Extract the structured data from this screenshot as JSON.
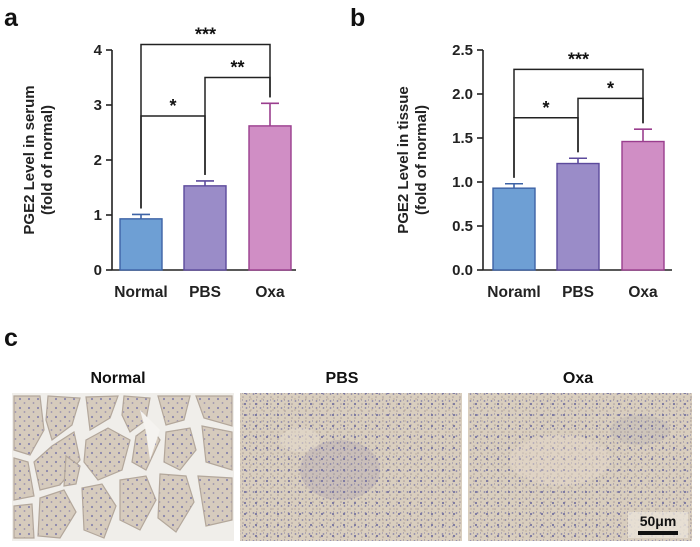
{
  "panels": {
    "a": "a",
    "b": "b",
    "c": "c"
  },
  "chart_data": [
    {
      "type": "bar",
      "panel": "a",
      "categories": [
        "Normal",
        "PBS",
        "Oxa"
      ],
      "values": [
        0.93,
        1.53,
        2.62
      ],
      "errors": [
        0.08,
        0.09,
        0.41
      ],
      "colors": [
        "#6e9fd4",
        "#9a8cc8",
        "#d08ec5"
      ],
      "edge_colors": [
        "#3d63a6",
        "#5c4a9c",
        "#9a3e8e"
      ],
      "ylabel_line1": "PGE2 Level in serum",
      "ylabel_line2": "(fold of normal)",
      "ylim": [
        0,
        4
      ],
      "yticks": [
        0,
        1,
        2,
        3,
        4
      ],
      "significance": [
        {
          "from": 0,
          "to": 2,
          "label": "***"
        },
        {
          "from": 1,
          "to": 2,
          "label": "**"
        },
        {
          "from": 0,
          "to": 1,
          "label": "*"
        }
      ],
      "significance_levels": [
        4.1,
        3.5,
        2.8
      ],
      "significance_drops": [
        0.93,
        1.53,
        2.62
      ]
    },
    {
      "type": "bar",
      "panel": "b",
      "categories": [
        "Noraml",
        "PBS",
        "Oxa"
      ],
      "values": [
        0.93,
        1.21,
        1.46
      ],
      "errors": [
        0.05,
        0.06,
        0.14
      ],
      "colors": [
        "#6e9fd4",
        "#9a8cc8",
        "#d08ec5"
      ],
      "edge_colors": [
        "#3d63a6",
        "#5c4a9c",
        "#9a3e8e"
      ],
      "ylabel_line1": "PGE2 Level in tissue",
      "ylabel_line2": "(fold of normal)",
      "ylim": [
        0,
        2.5
      ],
      "yticks": [
        "0.0",
        "0.5",
        "1.0",
        "1.5",
        "2.0",
        "2.5"
      ],
      "significance": [
        {
          "from": 0,
          "to": 2,
          "label": "***"
        },
        {
          "from": 1,
          "to": 2,
          "label": "*"
        },
        {
          "from": 0,
          "to": 1,
          "label": "*"
        }
      ],
      "significance_levels": [
        2.28,
        1.95,
        1.73
      ],
      "significance_drops": [
        0.93,
        1.21,
        1.46
      ]
    }
  ],
  "micrographs": {
    "titles": [
      "Normal",
      "PBS",
      "Oxa"
    ],
    "scale_bar": "50μm"
  },
  "colors": {
    "tissue_bg": "#d8cdbf",
    "tissue_stain": "#7d7aa6",
    "lumen": "#f1efec",
    "axis": "#222222"
  }
}
